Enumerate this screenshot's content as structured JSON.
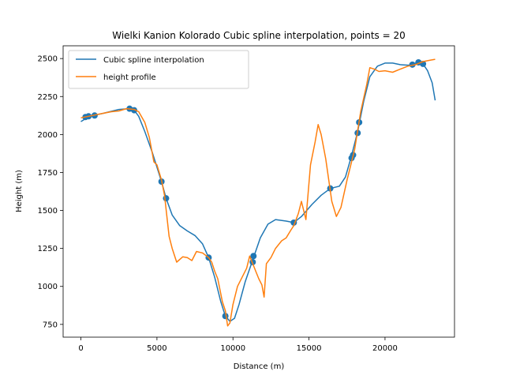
{
  "chart_data": {
    "type": "line",
    "title": "Wielki Kanion Kolorado Cubic spline interpolation, points = 20",
    "xlabel": "Distance (m)",
    "ylabel": "Height (m)",
    "xlim": [
      -1170,
      24570
    ],
    "ylim": [
      666,
      2584
    ],
    "xticks": [
      0,
      5000,
      10000,
      15000,
      20000
    ],
    "yticks": [
      750,
      1000,
      1250,
      1500,
      1750,
      2000,
      2250,
      2500
    ],
    "grid": false,
    "legend_position": "upper-left",
    "series": [
      {
        "name": "Cubic spline interpolation",
        "color": "#1f77b4",
        "points": [
          [
            0,
            2085
          ],
          [
            400,
            2110
          ],
          [
            800,
            2125
          ],
          [
            1500,
            2140
          ],
          [
            2500,
            2165
          ],
          [
            3200,
            2170
          ],
          [
            3500,
            2160
          ],
          [
            3800,
            2120
          ],
          [
            4200,
            2020
          ],
          [
            4700,
            1880
          ],
          [
            5300,
            1690
          ],
          [
            5600,
            1580
          ],
          [
            6000,
            1470
          ],
          [
            6500,
            1400
          ],
          [
            7000,
            1365
          ],
          [
            7500,
            1335
          ],
          [
            8000,
            1280
          ],
          [
            8400,
            1190
          ],
          [
            8800,
            1060
          ],
          [
            9200,
            900
          ],
          [
            9500,
            805
          ],
          [
            9800,
            770
          ],
          [
            10100,
            790
          ],
          [
            10400,
            880
          ],
          [
            10800,
            1030
          ],
          [
            11300,
            1175
          ],
          [
            11800,
            1320
          ],
          [
            12300,
            1410
          ],
          [
            12800,
            1440
          ],
          [
            13500,
            1430
          ],
          [
            14000,
            1420
          ],
          [
            14500,
            1460
          ],
          [
            15200,
            1540
          ],
          [
            15800,
            1600
          ],
          [
            16400,
            1645
          ],
          [
            17000,
            1660
          ],
          [
            17400,
            1720
          ],
          [
            17800,
            1860
          ],
          [
            18200,
            2020
          ],
          [
            18600,
            2220
          ],
          [
            19000,
            2380
          ],
          [
            19500,
            2450
          ],
          [
            20000,
            2470
          ],
          [
            20500,
            2470
          ],
          [
            21000,
            2460
          ],
          [
            21700,
            2455
          ],
          [
            22200,
            2480
          ],
          [
            22500,
            2465
          ],
          [
            22800,
            2420
          ],
          [
            23100,
            2340
          ],
          [
            23300,
            2225
          ]
        ]
      },
      {
        "name": "height profile",
        "color": "#ff7f0e",
        "points": [
          [
            0,
            2110
          ],
          [
            500,
            2120
          ],
          [
            1000,
            2130
          ],
          [
            1500,
            2140
          ],
          [
            2000,
            2150
          ],
          [
            2500,
            2155
          ],
          [
            3000,
            2170
          ],
          [
            3500,
            2165
          ],
          [
            3800,
            2150
          ],
          [
            4200,
            2080
          ],
          [
            4500,
            1980
          ],
          [
            4800,
            1820
          ],
          [
            5000,
            1800
          ],
          [
            5300,
            1700
          ],
          [
            5500,
            1600
          ],
          [
            5800,
            1330
          ],
          [
            6000,
            1250
          ],
          [
            6300,
            1160
          ],
          [
            6700,
            1195
          ],
          [
            7000,
            1190
          ],
          [
            7300,
            1170
          ],
          [
            7600,
            1230
          ],
          [
            8000,
            1220
          ],
          [
            8400,
            1190
          ],
          [
            8600,
            1160
          ],
          [
            8800,
            1100
          ],
          [
            9000,
            1050
          ],
          [
            9300,
            900
          ],
          [
            9500,
            840
          ],
          [
            9650,
            740
          ],
          [
            9800,
            760
          ],
          [
            10000,
            880
          ],
          [
            10300,
            1000
          ],
          [
            10600,
            1060
          ],
          [
            10900,
            1120
          ],
          [
            11100,
            1200
          ],
          [
            11300,
            1150
          ],
          [
            11500,
            1100
          ],
          [
            11700,
            1050
          ],
          [
            11900,
            1010
          ],
          [
            12050,
            930
          ],
          [
            12200,
            1150
          ],
          [
            12500,
            1190
          ],
          [
            12800,
            1250
          ],
          [
            13200,
            1300
          ],
          [
            13500,
            1320
          ],
          [
            13800,
            1370
          ],
          [
            14000,
            1400
          ],
          [
            14300,
            1480
          ],
          [
            14500,
            1560
          ],
          [
            14800,
            1440
          ],
          [
            15100,
            1800
          ],
          [
            15400,
            1950
          ],
          [
            15600,
            2065
          ],
          [
            15800,
            2000
          ],
          [
            16100,
            1840
          ],
          [
            16500,
            1560
          ],
          [
            16800,
            1460
          ],
          [
            17100,
            1520
          ],
          [
            17500,
            1700
          ],
          [
            18000,
            1900
          ],
          [
            18400,
            2150
          ],
          [
            18800,
            2330
          ],
          [
            19000,
            2440
          ],
          [
            19300,
            2430
          ],
          [
            19600,
            2415
          ],
          [
            20000,
            2420
          ],
          [
            20500,
            2410
          ],
          [
            21000,
            2430
          ],
          [
            21500,
            2450
          ],
          [
            22000,
            2460
          ],
          [
            22500,
            2480
          ],
          [
            23000,
            2490
          ],
          [
            23300,
            2495
          ]
        ]
      }
    ],
    "interpolation_nodes": {
      "color": "#1f77b4",
      "points": [
        [
          300,
          2115
        ],
        [
          500,
          2120
        ],
        [
          900,
          2125
        ],
        [
          3200,
          2170
        ],
        [
          3500,
          2160
        ],
        [
          5300,
          1690
        ],
        [
          5600,
          1580
        ],
        [
          8400,
          1190
        ],
        [
          9500,
          805
        ],
        [
          11300,
          1160
        ],
        [
          11350,
          1200
        ],
        [
          14000,
          1420
        ],
        [
          16400,
          1645
        ],
        [
          17800,
          1845
        ],
        [
          17900,
          1865
        ],
        [
          18200,
          2010
        ],
        [
          18300,
          2080
        ],
        [
          21800,
          2460
        ],
        [
          22200,
          2475
        ],
        [
          22500,
          2465
        ]
      ]
    }
  }
}
